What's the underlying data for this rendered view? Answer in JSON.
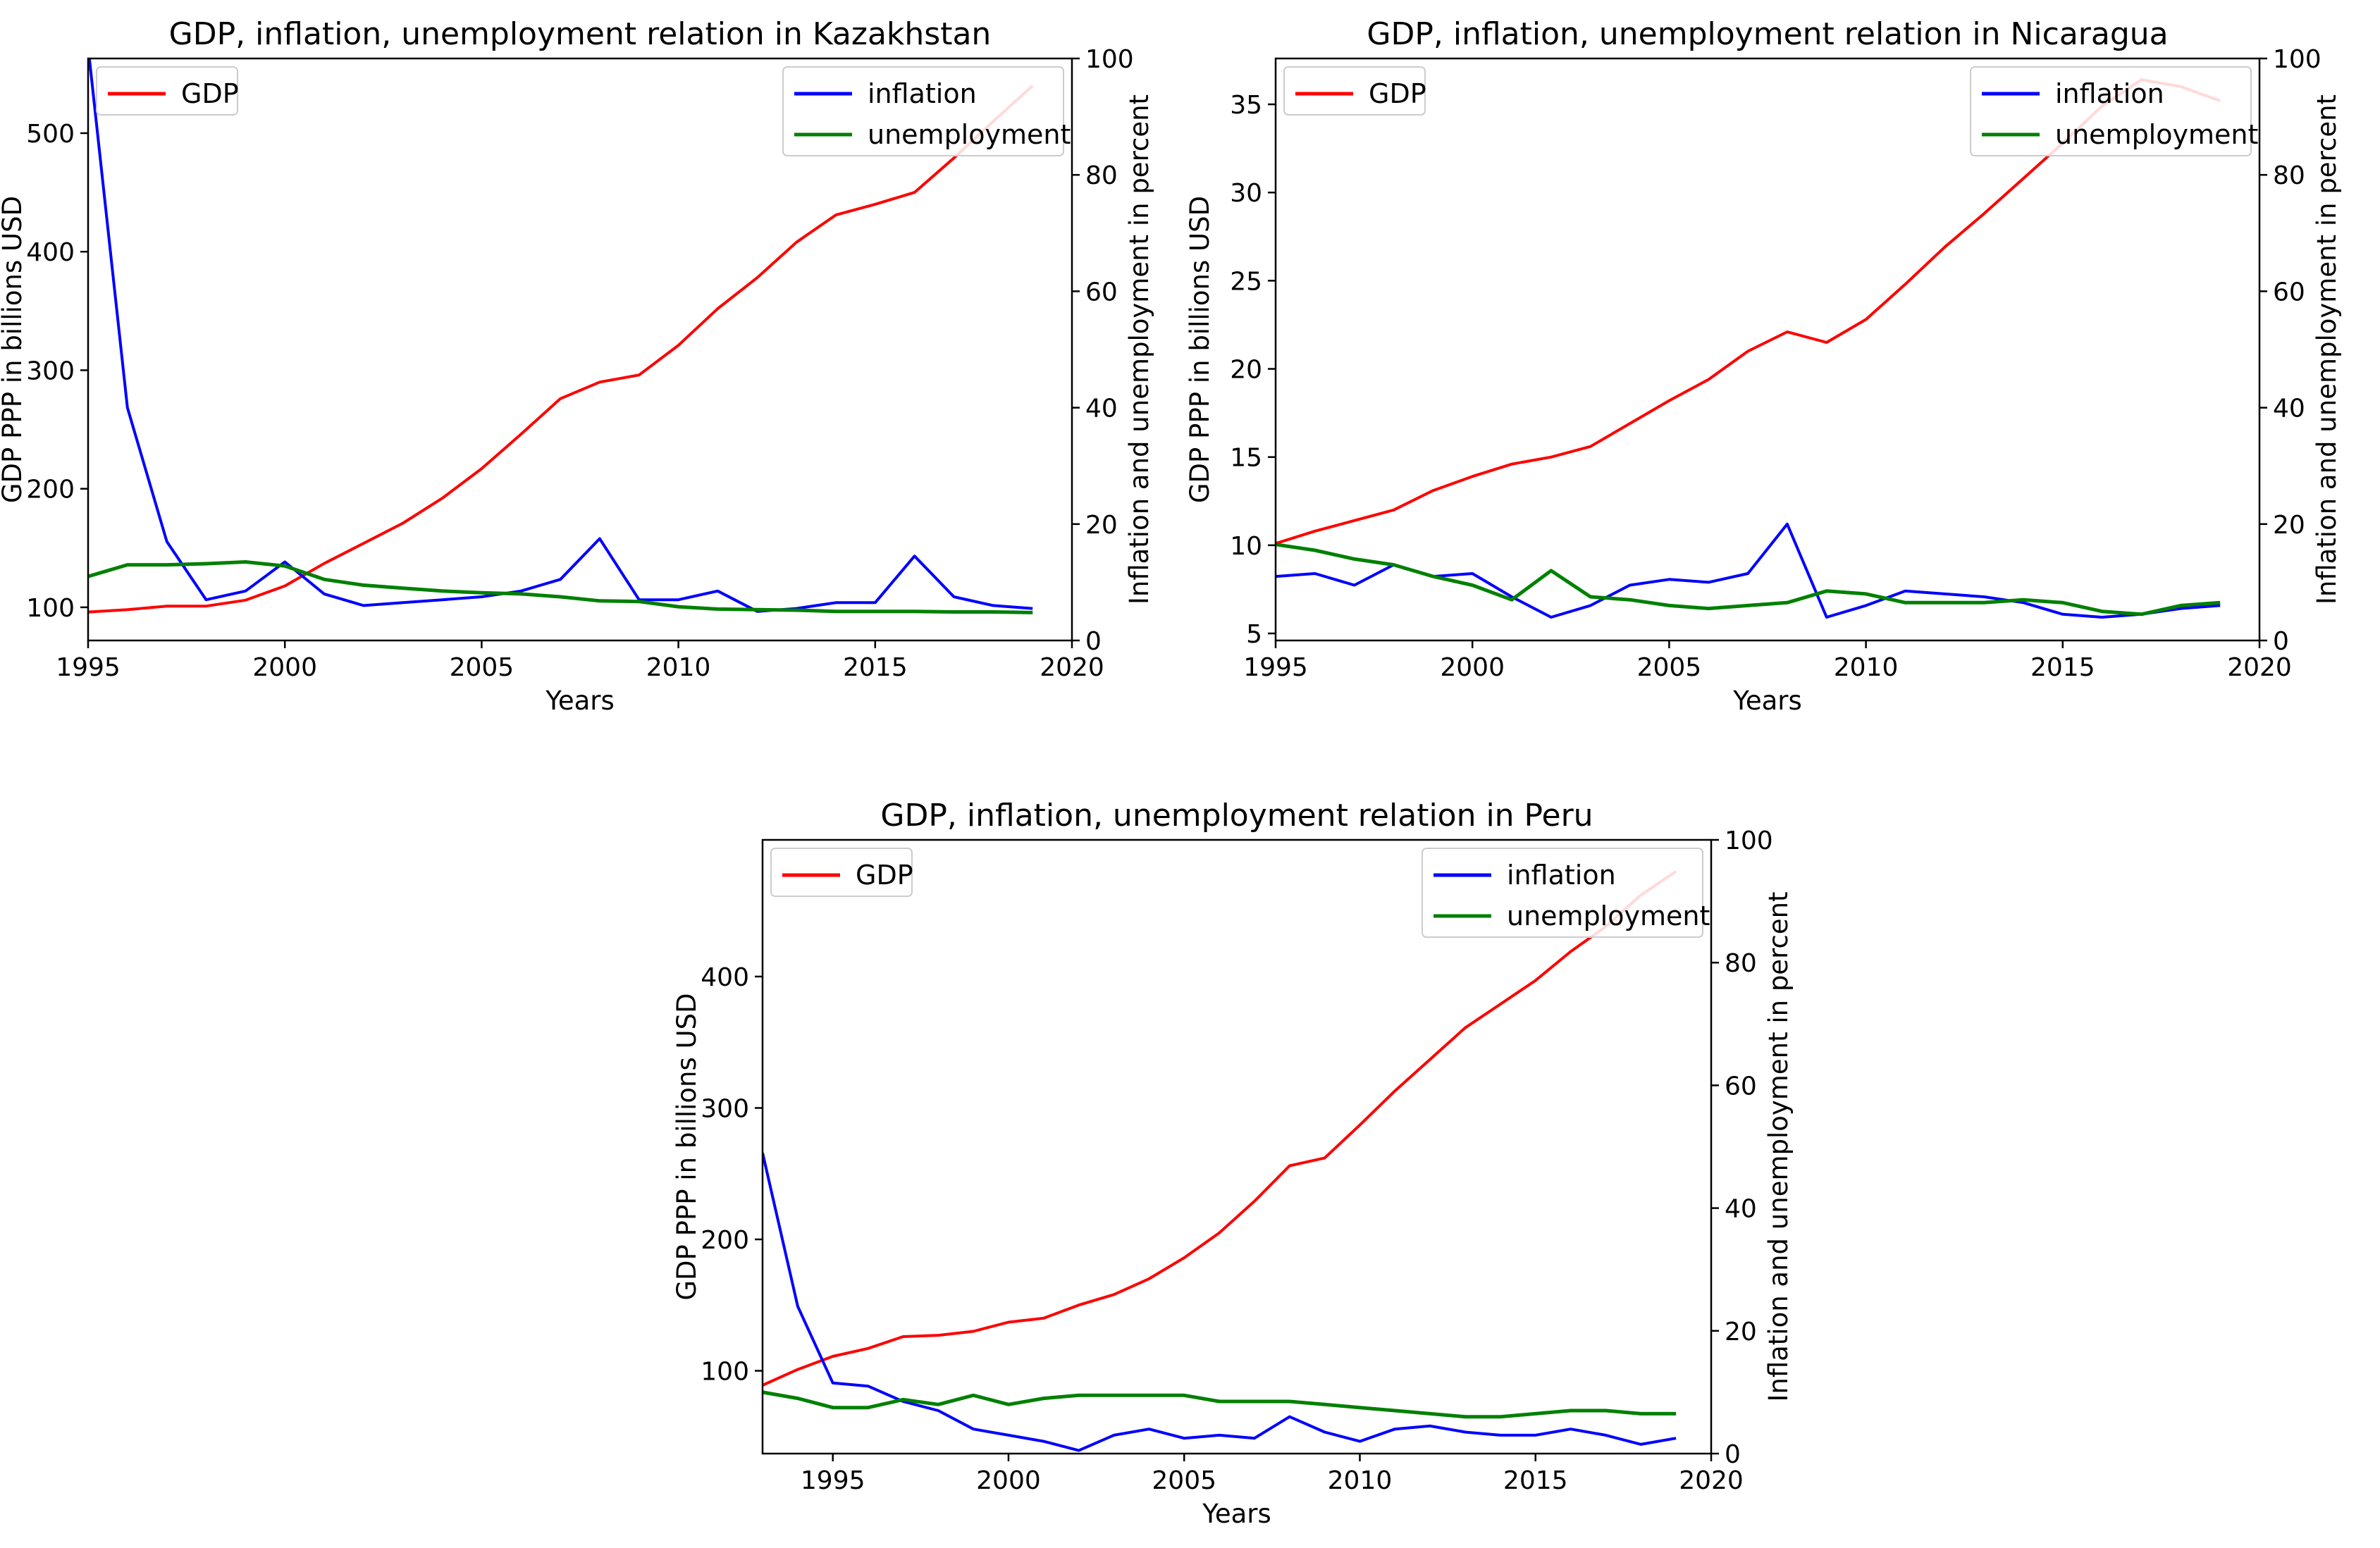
{
  "colors": {
    "gdp": "#ff0000",
    "inflation": "#0000ff",
    "unemployment": "#008000"
  },
  "chart_data": [
    {
      "type": "line",
      "title": "GDP, inflation, unemployment relation in Kazakhstan",
      "xlabel": "Years",
      "ylabel": "GDP PPP in billions USD",
      "y2label": "Inflation and unemployment in percent",
      "xlim": [
        1995,
        2020
      ],
      "ylim": [
        72,
        563
      ],
      "y2lim": [
        0,
        100
      ],
      "xticks": [
        1995,
        2000,
        2005,
        2010,
        2015,
        2020
      ],
      "yticks": [
        100,
        200,
        300,
        400,
        500
      ],
      "y2ticks": [
        0,
        20,
        40,
        60,
        80,
        100
      ],
      "legend_left": "upper left",
      "legend_right": "upper right",
      "x": [
        1995,
        1996,
        1997,
        1998,
        1999,
        2000,
        2001,
        2002,
        2003,
        2004,
        2005,
        2006,
        2007,
        2008,
        2009,
        2010,
        2011,
        2012,
        2013,
        2014,
        2015,
        2016,
        2017,
        2018,
        2019
      ],
      "series": [
        {
          "name": "GDP",
          "axis": "left",
          "color": "#ff0000",
          "values": [
            96,
            98,
            101,
            101,
            106,
            118,
            137,
            154,
            171,
            192,
            217,
            246,
            276,
            290,
            296,
            321,
            352,
            378,
            408,
            431,
            440,
            450,
            479,
            510,
            540
          ]
        },
        {
          "name": "inflation",
          "axis": "right",
          "color": "#0000ff",
          "values": [
            102,
            40,
            17,
            7,
            8.5,
            13.5,
            8,
            6,
            6.5,
            7,
            7.5,
            8.5,
            10.5,
            17.5,
            7,
            7,
            8.5,
            5,
            5.5,
            6.5,
            6.5,
            14.5,
            7.5,
            6,
            5.5
          ]
        },
        {
          "name": "unemployment",
          "axis": "right",
          "color": "#008000",
          "values": [
            11,
            13,
            13,
            13.2,
            13.5,
            12.8,
            10.5,
            9.5,
            9,
            8.5,
            8.2,
            8,
            7.5,
            6.8,
            6.7,
            5.8,
            5.4,
            5.3,
            5.2,
            5,
            5,
            5,
            4.9,
            4.9,
            4.8
          ]
        }
      ]
    },
    {
      "type": "line",
      "title": "GDP, inflation, unemployment relation in Nicaragua",
      "xlabel": "Years",
      "ylabel": "GDP PPP in billions USD",
      "y2label": "Inflation and unemployment in percent",
      "xlim": [
        1995,
        2020
      ],
      "ylim": [
        4.6,
        37.6
      ],
      "y2lim": [
        0,
        100
      ],
      "xticks": [
        1995,
        2000,
        2005,
        2010,
        2015,
        2020
      ],
      "yticks": [
        5,
        10,
        15,
        20,
        25,
        30,
        35
      ],
      "y2ticks": [
        0,
        20,
        40,
        60,
        80,
        100
      ],
      "legend_left": "upper left",
      "legend_right": "upper right",
      "x": [
        1995,
        1996,
        1997,
        1998,
        1999,
        2000,
        2001,
        2002,
        2003,
        2004,
        2005,
        2006,
        2007,
        2008,
        2009,
        2010,
        2011,
        2012,
        2013,
        2014,
        2015,
        2016,
        2017,
        2018,
        2019
      ],
      "series": [
        {
          "name": "GDP",
          "axis": "left",
          "color": "#ff0000",
          "values": [
            10.1,
            10.8,
            11.4,
            12.0,
            13.1,
            13.9,
            14.6,
            15.0,
            15.6,
            16.9,
            18.2,
            19.4,
            21.0,
            22.1,
            21.5,
            22.8,
            24.8,
            26.9,
            28.8,
            30.8,
            32.8,
            34.9,
            36.4,
            36.0,
            35.2
          ]
        },
        {
          "name": "inflation",
          "axis": "right",
          "color": "#0000ff",
          "values": [
            11,
            11.5,
            9.5,
            13,
            11,
            11.5,
            7.5,
            4,
            6,
            9.5,
            10.5,
            10,
            11.5,
            20,
            4,
            6,
            8.5,
            8,
            7.5,
            6.5,
            4.5,
            4,
            4.5,
            5.5,
            6
          ]
        },
        {
          "name": "unemployment",
          "axis": "right",
          "color": "#008000",
          "values": [
            16.5,
            15.5,
            14,
            13,
            11,
            9.5,
            7,
            12,
            7.5,
            7,
            6,
            5.5,
            6,
            6.5,
            8.5,
            8,
            6.5,
            6.5,
            6.5,
            7,
            6.5,
            5,
            4.5,
            6,
            6.5
          ]
        }
      ]
    },
    {
      "type": "line",
      "title": "GDP, inflation, unemployment relation in Peru",
      "xlabel": "Years",
      "ylabel": "GDP PPP in billions USD",
      "y2label": "Inflation and unemployment in percent",
      "xlim": [
        1993,
        2020
      ],
      "ylim": [
        37,
        504
      ],
      "y2lim": [
        0,
        100
      ],
      "xticks": [
        1995,
        2000,
        2005,
        2010,
        2015,
        2020
      ],
      "yticks": [
        100,
        200,
        300,
        400
      ],
      "y2ticks": [
        0,
        20,
        40,
        60,
        80,
        100
      ],
      "legend_left": "upper left",
      "legend_right": "upper right",
      "x": [
        1993,
        1994,
        1995,
        1996,
        1997,
        1998,
        1999,
        2000,
        2001,
        2002,
        2003,
        2004,
        2005,
        2006,
        2007,
        2008,
        2009,
        2010,
        2011,
        2012,
        2013,
        2014,
        2015,
        2016,
        2017,
        2018,
        2019
      ],
      "series": [
        {
          "name": "GDP",
          "axis": "left",
          "color": "#ff0000",
          "values": [
            89,
            101,
            111,
            117,
            126,
            127,
            130,
            137,
            140,
            150,
            158,
            170,
            186,
            205,
            229,
            256,
            262,
            287,
            313,
            337,
            361,
            379,
            397,
            419,
            438,
            462,
            480
          ]
        },
        {
          "name": "inflation",
          "axis": "right",
          "color": "#0000ff",
          "values": [
            49,
            24,
            11.5,
            11,
            8.5,
            7,
            4,
            3,
            2,
            0.5,
            3,
            4,
            2.5,
            3,
            2.5,
            6,
            3.5,
            2,
            4,
            4.5,
            3.5,
            3,
            3,
            4,
            3,
            1.5,
            2.5
          ]
        },
        {
          "name": "unemployment",
          "axis": "right",
          "color": "#008000",
          "values": [
            10,
            9,
            7.5,
            7.5,
            8.8,
            8,
            9.5,
            8,
            9,
            9.5,
            9.5,
            9.5,
            9.5,
            8.5,
            8.5,
            8.5,
            8,
            7.5,
            7,
            6.5,
            6,
            6,
            6.5,
            7,
            7,
            6.5,
            6.5
          ]
        }
      ]
    }
  ]
}
